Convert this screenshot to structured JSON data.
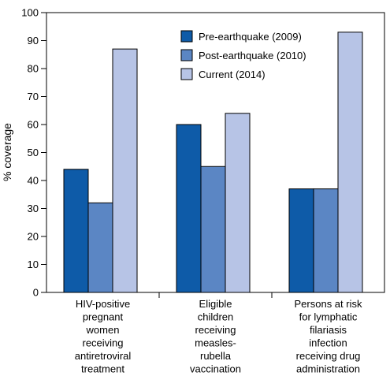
{
  "chart_data": {
    "type": "bar",
    "ylabel": "% coverage",
    "ylim": [
      0,
      100
    ],
    "yticks": [
      0,
      10,
      20,
      30,
      40,
      50,
      60,
      70,
      80,
      90,
      100
    ],
    "grid": false,
    "legend_position": "top-right",
    "categories": [
      [
        "HIV-positive",
        "pregnant",
        "women",
        "receiving",
        "antiretroviral",
        "treatment"
      ],
      [
        "Eligible",
        "children",
        "receiving",
        "measles-",
        "rubella",
        "vaccination"
      ],
      [
        "Persons at risk",
        "for lymphatic",
        "filariasis",
        "infection",
        "receiving drug",
        "administration"
      ]
    ],
    "series": [
      {
        "name": "Pre-earthquake (2009)",
        "color": "#0e5ba8",
        "values": [
          44,
          60,
          37
        ]
      },
      {
        "name": "Post-earthquake (2010)",
        "color": "#5b86c4",
        "values": [
          32,
          45,
          37
        ]
      },
      {
        "name": "Current (2014)",
        "color": "#b7c4e6",
        "values": [
          87,
          64,
          93
        ]
      }
    ]
  }
}
